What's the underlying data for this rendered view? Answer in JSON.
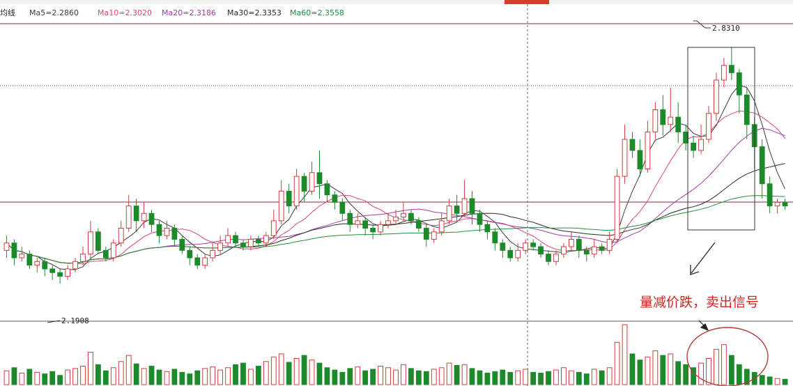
{
  "header": {
    "indicator_name": "均线",
    "date_marker_color": "#d93a2b"
  },
  "legend": [
    {
      "label": "Ma5=2.2860",
      "color": "#3a3a3a"
    },
    {
      "label": "Ma10=2.3020",
      "color": "#d4477a"
    },
    {
      "label": "Ma20=2.3186",
      "color": "#a33aa8"
    },
    {
      "label": "Ma30=2.3353",
      "color": "#2a2a2a"
    },
    {
      "label": "Ma60=2.3558",
      "color": "#1f8f3a"
    }
  ],
  "annotations": {
    "high_label": "2.8310",
    "low_label": "2.1908",
    "signal_text": "量减价跌，卖出信号"
  },
  "colors": {
    "up": "#d23a3a",
    "down": "#1c8a2a",
    "ref_line": "#8a2a4a",
    "crosshair": "#666666",
    "annotation": "#d42020",
    "box": "#333333"
  },
  "chart_data": {
    "type": "candlestick",
    "title": "",
    "xlabel": "",
    "ylabel": "",
    "ylim": [
      2.1,
      2.9
    ],
    "grid": false,
    "legend_position": "top-left",
    "high": 2.831,
    "low": 2.1908,
    "candles": [
      [
        2.28,
        2.3,
        2.26,
        2.32
      ],
      [
        2.3,
        2.26,
        2.24,
        2.31
      ],
      [
        2.26,
        2.27,
        2.25,
        2.29
      ],
      [
        2.27,
        2.24,
        2.23,
        2.28
      ],
      [
        2.24,
        2.25,
        2.22,
        2.26
      ],
      [
        2.25,
        2.23,
        2.21,
        2.26
      ],
      [
        2.23,
        2.22,
        2.2,
        2.24
      ],
      [
        2.22,
        2.21,
        2.19,
        2.23
      ],
      [
        2.21,
        2.23,
        2.2,
        2.24
      ],
      [
        2.23,
        2.25,
        2.22,
        2.26
      ],
      [
        2.25,
        2.27,
        2.24,
        2.29
      ],
      [
        2.27,
        2.33,
        2.26,
        2.36
      ],
      [
        2.33,
        2.28,
        2.27,
        2.34
      ],
      [
        2.28,
        2.26,
        2.25,
        2.29
      ],
      [
        2.26,
        2.3,
        2.25,
        2.31
      ],
      [
        2.3,
        2.34,
        2.29,
        2.36
      ],
      [
        2.34,
        2.4,
        2.33,
        2.43
      ],
      [
        2.4,
        2.36,
        2.33,
        2.42
      ],
      [
        2.36,
        2.38,
        2.34,
        2.41
      ],
      [
        2.38,
        2.35,
        2.33,
        2.39
      ],
      [
        2.35,
        2.32,
        2.3,
        2.36
      ],
      [
        2.32,
        2.34,
        2.31,
        2.36
      ],
      [
        2.34,
        2.31,
        2.29,
        2.35
      ],
      [
        2.31,
        2.28,
        2.27,
        2.32
      ],
      [
        2.28,
        2.26,
        2.24,
        2.29
      ],
      [
        2.26,
        2.24,
        2.23,
        2.27
      ],
      [
        2.24,
        2.26,
        2.23,
        2.27
      ],
      [
        2.26,
        2.28,
        2.25,
        2.3
      ],
      [
        2.28,
        2.3,
        2.27,
        2.32
      ],
      [
        2.3,
        2.32,
        2.29,
        2.34
      ],
      [
        2.32,
        2.3,
        2.29,
        2.33
      ],
      [
        2.3,
        2.29,
        2.28,
        2.31
      ],
      [
        2.29,
        2.31,
        2.28,
        2.32
      ],
      [
        2.31,
        2.3,
        2.29,
        2.32
      ],
      [
        2.3,
        2.32,
        2.29,
        2.33
      ],
      [
        2.32,
        2.36,
        2.31,
        2.39
      ],
      [
        2.36,
        2.44,
        2.35,
        2.47
      ],
      [
        2.44,
        2.4,
        2.38,
        2.46
      ],
      [
        2.4,
        2.48,
        2.39,
        2.5
      ],
      [
        2.48,
        2.44,
        2.41,
        2.49
      ],
      [
        2.44,
        2.49,
        2.43,
        2.52
      ],
      [
        2.49,
        2.46,
        2.42,
        2.55
      ],
      [
        2.46,
        2.43,
        2.41,
        2.47
      ],
      [
        2.43,
        2.41,
        2.39,
        2.44
      ],
      [
        2.41,
        2.38,
        2.36,
        2.42
      ],
      [
        2.38,
        2.35,
        2.33,
        2.39
      ],
      [
        2.35,
        2.36,
        2.34,
        2.38
      ],
      [
        2.36,
        2.34,
        2.32,
        2.37
      ],
      [
        2.34,
        2.33,
        2.31,
        2.35
      ],
      [
        2.33,
        2.35,
        2.32,
        2.36
      ],
      [
        2.35,
        2.36,
        2.34,
        2.38
      ],
      [
        2.36,
        2.37,
        2.35,
        2.39
      ],
      [
        2.37,
        2.38,
        2.36,
        2.41
      ],
      [
        2.38,
        2.36,
        2.35,
        2.39
      ],
      [
        2.36,
        2.34,
        2.33,
        2.37
      ],
      [
        2.34,
        2.31,
        2.29,
        2.35
      ],
      [
        2.31,
        2.33,
        2.3,
        2.34
      ],
      [
        2.33,
        2.36,
        2.32,
        2.38
      ],
      [
        2.36,
        2.4,
        2.35,
        2.42
      ],
      [
        2.4,
        2.38,
        2.36,
        2.43
      ],
      [
        2.38,
        2.42,
        2.37,
        2.47
      ],
      [
        2.42,
        2.38,
        2.35,
        2.44
      ],
      [
        2.38,
        2.35,
        2.33,
        2.39
      ],
      [
        2.35,
        2.33,
        2.31,
        2.36
      ],
      [
        2.33,
        2.3,
        2.28,
        2.34
      ],
      [
        2.3,
        2.28,
        2.26,
        2.31
      ],
      [
        2.28,
        2.26,
        2.25,
        2.29
      ],
      [
        2.26,
        2.28,
        2.25,
        2.3
      ],
      [
        2.28,
        2.3,
        2.27,
        2.31
      ],
      [
        2.3,
        2.29,
        2.28,
        2.31
      ],
      [
        2.29,
        2.27,
        2.26,
        2.3
      ],
      [
        2.27,
        2.25,
        2.24,
        2.28
      ],
      [
        2.25,
        2.27,
        2.24,
        2.28
      ],
      [
        2.27,
        2.29,
        2.26,
        2.3
      ],
      [
        2.29,
        2.31,
        2.28,
        2.33
      ],
      [
        2.31,
        2.28,
        2.26,
        2.32
      ],
      [
        2.28,
        2.27,
        2.25,
        2.29
      ],
      [
        2.27,
        2.29,
        2.26,
        2.31
      ],
      [
        2.29,
        2.28,
        2.27,
        2.3
      ],
      [
        2.28,
        2.31,
        2.27,
        2.33
      ],
      [
        2.31,
        2.48,
        2.3,
        2.5
      ],
      [
        2.48,
        2.58,
        2.46,
        2.62
      ],
      [
        2.58,
        2.55,
        2.53,
        2.6
      ],
      [
        2.55,
        2.5,
        2.48,
        2.58
      ],
      [
        2.5,
        2.6,
        2.49,
        2.63
      ],
      [
        2.6,
        2.66,
        2.58,
        2.68
      ],
      [
        2.66,
        2.62,
        2.59,
        2.7
      ],
      [
        2.62,
        2.64,
        2.6,
        2.72
      ],
      [
        2.64,
        2.6,
        2.57,
        2.68
      ],
      [
        2.6,
        2.57,
        2.55,
        2.62
      ],
      [
        2.57,
        2.55,
        2.53,
        2.59
      ],
      [
        2.55,
        2.58,
        2.54,
        2.62
      ],
      [
        2.58,
        2.65,
        2.57,
        2.67
      ],
      [
        2.65,
        2.74,
        2.63,
        2.76
      ],
      [
        2.74,
        2.78,
        2.72,
        2.8
      ],
      [
        2.78,
        2.76,
        2.74,
        2.83
      ],
      [
        2.76,
        2.7,
        2.65,
        2.77
      ],
      [
        2.7,
        2.62,
        2.58,
        2.72
      ],
      [
        2.62,
        2.56,
        2.5,
        2.64
      ],
      [
        2.56,
        2.46,
        2.42,
        2.58
      ],
      [
        2.46,
        2.4,
        2.38,
        2.48
      ],
      [
        2.4,
        2.41,
        2.38,
        2.42
      ],
      [
        2.41,
        2.4,
        2.39,
        2.42
      ]
    ],
    "volumes": [
      18,
      22,
      15,
      20,
      16,
      14,
      17,
      12,
      19,
      21,
      24,
      42,
      26,
      18,
      22,
      30,
      38,
      27,
      21,
      24,
      19,
      17,
      20,
      16,
      14,
      18,
      21,
      23,
      19,
      22,
      26,
      28,
      20,
      24,
      30,
      36,
      40,
      29,
      34,
      38,
      32,
      28,
      22,
      19,
      16,
      21,
      23,
      18,
      20,
      24,
      22,
      19,
      26,
      21,
      18,
      17,
      20,
      22,
      28,
      25,
      26,
      21,
      18,
      15,
      17,
      19,
      16,
      18,
      20,
      16,
      15,
      17,
      19,
      22,
      18,
      16,
      14,
      20,
      18,
      22,
      55,
      78,
      40,
      32,
      36,
      44,
      38,
      40,
      30,
      26,
      22,
      28,
      34,
      46,
      52,
      38,
      26,
      20,
      16,
      12,
      10,
      8,
      7
    ]
  }
}
